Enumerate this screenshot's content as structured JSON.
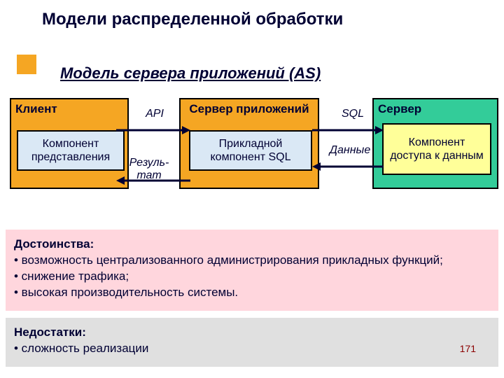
{
  "title": "Модели распределенной обработки",
  "subtitle": "Модель сервера приложений (AS)",
  "tiers": {
    "client": {
      "label": "Клиент",
      "inner": "Компонент представления",
      "bg": "#f5a623",
      "inner_bg": "#dae8f5"
    },
    "app": {
      "label": "Сервер приложений",
      "inner": "Прикладной компонент SQL",
      "bg": "#f5a623",
      "inner_bg": "#dae8f5"
    },
    "server": {
      "label": "Сервер",
      "inner": "Компонент доступа к данным",
      "bg": "#33cc99",
      "inner_bg": "#ffff99"
    }
  },
  "edges": {
    "api": "API",
    "result": "Резуль-\nтат",
    "sql": "SQL",
    "data": "Данные"
  },
  "arrow_color": "#000033",
  "pros": {
    "title": "Достоинства:",
    "items": [
      "• возможность централизованного администрирования прикладных функций;",
      "• снижение трафика;",
      "• высокая производительность системы."
    ],
    "bg": "#ffd6dd"
  },
  "cons": {
    "title": "Недостатки:",
    "items": [
      "• сложность реализации"
    ],
    "bg": "#e0e0e0"
  },
  "page_number": "171",
  "fonts": {
    "title_size": 24,
    "subtitle_size": 22,
    "body_size": 17,
    "box_size": 16
  }
}
